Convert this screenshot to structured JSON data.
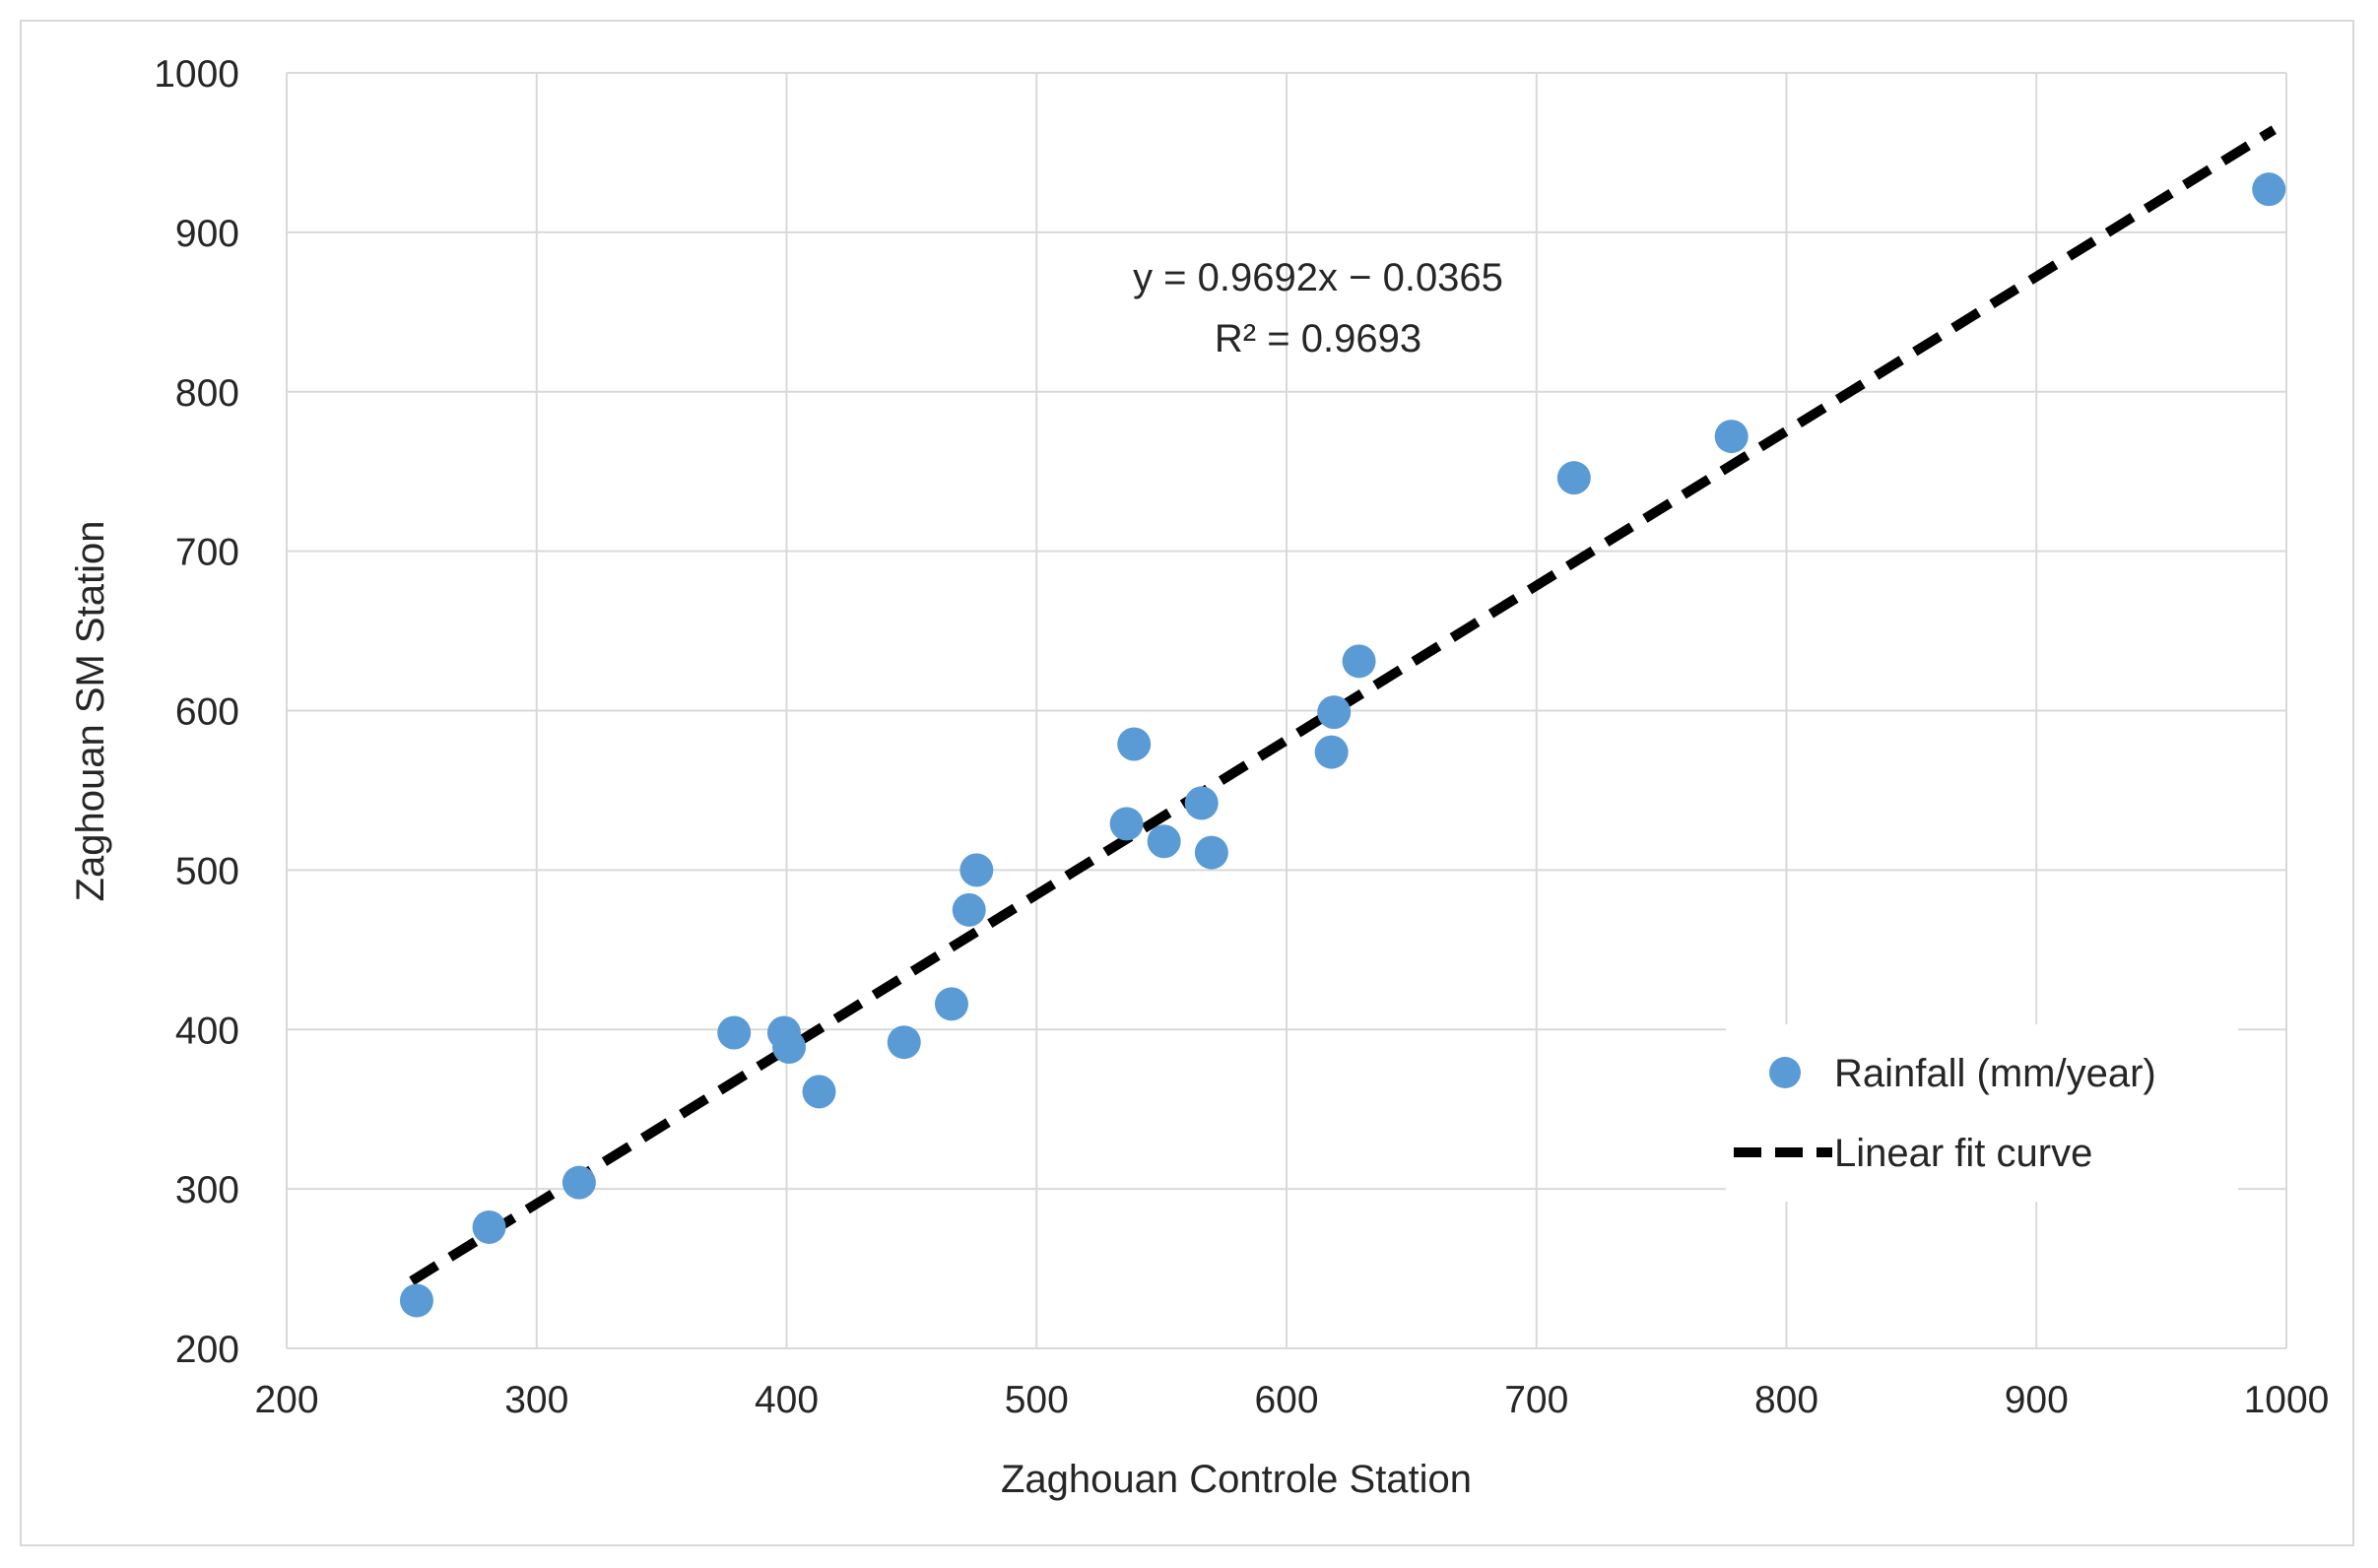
{
  "chart_data": {
    "type": "scatter",
    "xlabel": "Zaghouan Controle Station",
    "ylabel": "Zaghouan SM Station",
    "xlim": [
      200,
      1000
    ],
    "ylim": [
      200,
      1000
    ],
    "xticks": [
      "200",
      "300",
      "400",
      "500",
      "600",
      "700",
      "800",
      "900",
      "1000"
    ],
    "yticks": [
      "200",
      "300",
      "400",
      "500",
      "600",
      "700",
      "800",
      "900",
      "1000"
    ],
    "grid": true,
    "legend_position": "bottom-right",
    "colors": {
      "points": "#5b9bd5",
      "fit_line": "#000000",
      "grid": "#d9d9d9"
    },
    "series": [
      {
        "name": "Rainfall (mm/year)",
        "kind": "scatter",
        "points": [
          [
            252,
            230
          ],
          [
            281,
            276
          ],
          [
            317,
            304
          ],
          [
            379,
            398
          ],
          [
            399,
            398
          ],
          [
            401,
            389
          ],
          [
            413,
            361
          ],
          [
            447,
            392
          ],
          [
            466,
            416
          ],
          [
            473,
            475
          ],
          [
            476,
            500
          ],
          [
            536,
            529
          ],
          [
            539,
            579
          ],
          [
            551,
            518
          ],
          [
            566,
            542
          ],
          [
            570,
            511
          ],
          [
            618,
            574
          ],
          [
            619,
            599
          ],
          [
            629,
            631
          ],
          [
            715,
            746
          ],
          [
            778,
            772
          ],
          [
            993,
            927
          ]
        ]
      },
      {
        "name": "Linear fit curve",
        "kind": "line",
        "style": "dashed",
        "x_range": [
          250,
          995
        ],
        "slope": 0.9692,
        "intercept": -0.0365
      }
    ],
    "annotation": {
      "equation": "y = 0.9692x − 0.0365",
      "r_squared": "R² = 0.9693"
    }
  }
}
